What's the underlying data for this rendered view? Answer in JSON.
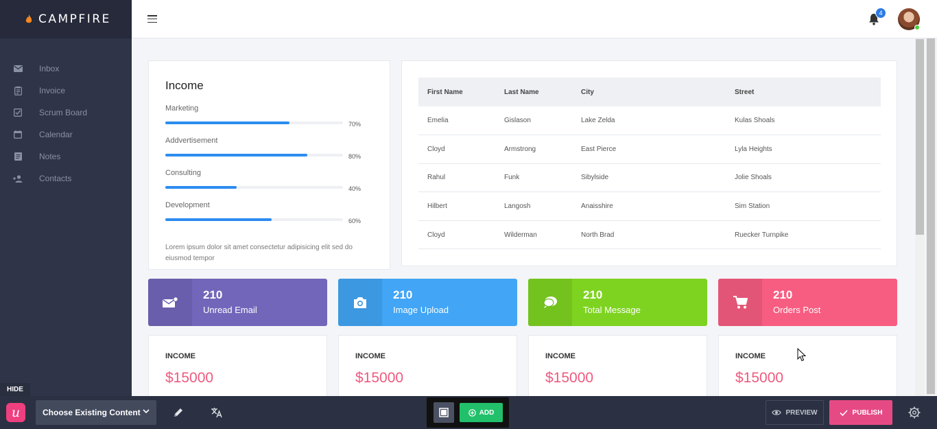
{
  "app": {
    "name": "CAMPFIRE"
  },
  "sidebar": {
    "items": [
      {
        "label": "Inbox",
        "icon": "mail-icon"
      },
      {
        "label": "Invoice",
        "icon": "invoice-icon"
      },
      {
        "label": "Scrum Board",
        "icon": "checkbox-icon"
      },
      {
        "label": "Calendar",
        "icon": "calendar-icon"
      },
      {
        "label": "Notes",
        "icon": "notes-icon"
      },
      {
        "label": "Contacts",
        "icon": "add-user-icon"
      }
    ]
  },
  "header": {
    "notification_count": "4"
  },
  "income": {
    "title": "Income",
    "bars": [
      {
        "label": "Marketing",
        "value": 70,
        "pct": "70%"
      },
      {
        "label": "Addvertisement",
        "value": 80,
        "pct": "80%"
      },
      {
        "label": "Consulting",
        "value": 40,
        "pct": "40%"
      },
      {
        "label": "Development",
        "value": 60,
        "pct": "60%"
      }
    ],
    "description": "Lorem ipsum dolor sit amet consectetur adipisicing elit sed do eiusmod tempor"
  },
  "table": {
    "headers": [
      "First Name",
      "Last Name",
      "City",
      "Street"
    ],
    "rows": [
      [
        "Emelia",
        "Gislason",
        "Lake Zelda",
        "Kulas Shoals"
      ],
      [
        "Cloyd",
        "Armstrong",
        "East Pierce",
        "Lyla Heights"
      ],
      [
        "Rahul",
        "Funk",
        "Sibylside",
        "Jolie Shoals"
      ],
      [
        "Hilbert",
        "Langosh",
        "Anaisshire",
        "Sim Station"
      ],
      [
        "Cloyd",
        "Wilderman",
        "North Brad",
        "Ruecker Turnpike"
      ]
    ]
  },
  "stats": [
    {
      "num": "210",
      "label": "Unread Email",
      "color": "#7266ba",
      "icon": "email-icon"
    },
    {
      "num": "210",
      "label": "Image Upload",
      "color": "#42a5f5",
      "icon": "camera-icon"
    },
    {
      "num": "210",
      "label": "Total Message",
      "color": "#7ed321",
      "icon": "chat-icon"
    },
    {
      "num": "210",
      "label": "Orders Post",
      "color": "#f75d81",
      "icon": "cart-icon"
    }
  ],
  "mini_cards": [
    {
      "head": "INCOME",
      "amount": "$15000"
    },
    {
      "head": "INCOME",
      "amount": "$15000"
    },
    {
      "head": "INCOME",
      "amount": "$15000"
    },
    {
      "head": "INCOME",
      "amount": "$15000"
    }
  ],
  "toolbar": {
    "hide_label": "HIDE",
    "choose_label": "Choose Existing Content",
    "add_label": "ADD",
    "preview_label": "PREVIEW",
    "publish_label": "PUBLISH"
  }
}
